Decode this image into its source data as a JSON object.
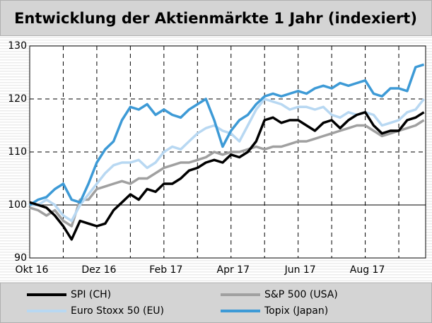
{
  "chart_data": {
    "type": "line",
    "title": "Entwicklung der Aktienmärkte 1 Jahr (indexiert)",
    "x": [
      0,
      0.25,
      0.5,
      0.75,
      1,
      1.25,
      1.5,
      1.75,
      2,
      2.25,
      2.5,
      2.75,
      3,
      3.25,
      3.5,
      3.75,
      4,
      4.25,
      4.5,
      4.75,
      5,
      5.25,
      5.5,
      5.75,
      6,
      6.25,
      6.5,
      6.75,
      7,
      7.25,
      7.5,
      7.75,
      8,
      8.25,
      8.5,
      8.75,
      9,
      9.25,
      9.5,
      9.75,
      10,
      10.25,
      10.5,
      10.75,
      11,
      11.25,
      11.5,
      11.75
    ],
    "series": [
      {
        "name": "SPI (CH)",
        "color": "#000000",
        "values": [
          100.5,
          100,
          99.5,
          98,
          96,
          93.5,
          97,
          96.5,
          96,
          96.5,
          99,
          100.5,
          102,
          101,
          103,
          102.5,
          104,
          104,
          105,
          106.5,
          107,
          108,
          108.5,
          108,
          109.5,
          109,
          110,
          112,
          116,
          116.5,
          115.5,
          116,
          116,
          115,
          114,
          115.5,
          116,
          114.5,
          116,
          117,
          117.5,
          115,
          113.5,
          114,
          114,
          116,
          116.5,
          117.5
        ]
      },
      {
        "name": "S&P 500 (USA)",
        "color": "#a0a0a0",
        "values": [
          99.5,
          99,
          98,
          99,
          97,
          96,
          101,
          101,
          103,
          103.5,
          104,
          104.5,
          104,
          105,
          105,
          106,
          107,
          107.5,
          108,
          108,
          108.5,
          109,
          110,
          109.5,
          110,
          110,
          110.5,
          111,
          110.5,
          111,
          111,
          111.5,
          112,
          112,
          112.5,
          113,
          113.5,
          114,
          114.5,
          115,
          115,
          114,
          113,
          113.5,
          114,
          114.5,
          115,
          116
        ]
      },
      {
        "name": "Euro Stoxx 50 (EU)",
        "color": "#b8d8f2",
        "values": [
          100,
          100,
          101,
          100,
          98,
          97,
          100,
          102,
          104,
          106,
          107.5,
          108,
          108,
          108.5,
          107,
          108,
          110,
          111,
          110.5,
          112,
          113.5,
          114.5,
          115,
          114,
          113.5,
          112,
          115,
          118,
          120,
          119.5,
          119,
          118,
          118.5,
          118.5,
          118,
          118.5,
          117,
          116.5,
          117.5,
          117,
          117.5,
          117,
          115,
          115.5,
          116,
          117.5,
          118,
          120
        ]
      },
      {
        "name": "Topix (Japan)",
        "color": "#3d9ad6",
        "values": [
          100,
          101,
          101.5,
          103,
          104,
          101,
          100.5,
          104,
          108,
          110.5,
          112,
          116,
          118.5,
          118,
          119,
          117,
          118,
          117,
          116.5,
          118,
          119,
          120,
          116,
          111,
          114,
          116,
          117,
          119,
          120.5,
          121,
          120.5,
          121,
          121.5,
          121,
          122,
          122.5,
          122,
          123,
          122.5,
          123,
          123.5,
          121,
          120.5,
          122,
          122,
          121.5,
          126,
          126.5
        ]
      }
    ],
    "xlim": [
      0,
      11.8
    ],
    "xticks": [
      {
        "value": 0,
        "label": "Okt 16"
      },
      {
        "value": 1,
        "label": null
      },
      {
        "value": 2,
        "label": "Dez 16"
      },
      {
        "value": 3,
        "label": null
      },
      {
        "value": 4,
        "label": "Feb 17"
      },
      {
        "value": 5,
        "label": null
      },
      {
        "value": 6,
        "label": "Apr 17"
      },
      {
        "value": 7,
        "label": null
      },
      {
        "value": 8,
        "label": "Jun 17"
      },
      {
        "value": 9,
        "label": null
      },
      {
        "value": 10,
        "label": "Aug 17"
      },
      {
        "value": 11,
        "label": null
      }
    ],
    "ylim": [
      90,
      130
    ],
    "yticks": [
      90,
      100,
      110,
      120,
      130
    ],
    "grid": true,
    "legend": "bottom"
  }
}
